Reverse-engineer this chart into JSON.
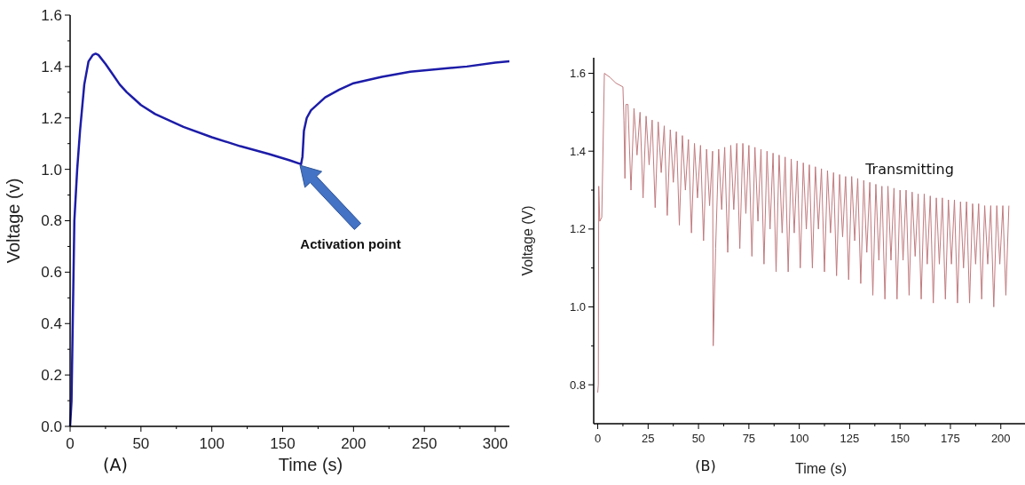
{
  "chart_data": [
    {
      "type": "line",
      "xlabel": "Time (s)",
      "ylabel": "Voltage (v)",
      "xlim": [
        0,
        310
      ],
      "ylim": [
        0,
        1.6
      ],
      "xticks": [
        0,
        {
          "value": 25,
          "label": null
        },
        50,
        {
          "value": 75,
          "label": null
        },
        100,
        {
          "value": 125,
          "label": null
        },
        150,
        {
          "value": 175,
          "label": null
        },
        200,
        {
          "value": 225,
          "label": null
        },
        250,
        {
          "value": 275,
          "label": null
        },
        300
      ],
      "yticks": [
        {
          "value": 0,
          "label": "0.0"
        },
        {
          "value": 0.1,
          "label": null
        },
        0.2,
        {
          "value": 0.3,
          "label": null
        },
        0.4,
        {
          "value": 0.5,
          "label": null
        },
        0.6,
        {
          "value": 0.7,
          "label": null
        },
        0.8,
        {
          "value": 0.9,
          "label": null
        },
        {
          "value": 1,
          "label": "1.0"
        },
        {
          "value": 1.1,
          "label": null
        },
        1.2,
        {
          "value": 1.3,
          "label": null
        },
        1.4,
        {
          "value": 1.5,
          "label": null
        },
        1.6
      ],
      "grid": false,
      "marker": "none",
      "line_style": "solid",
      "series": [
        {
          "color": "#1c1ca8",
          "x": [
            0,
            1,
            2,
            3,
            5,
            7,
            10,
            13,
            16,
            18,
            20,
            25,
            30,
            35,
            40,
            45,
            50,
            60,
            70,
            80,
            100,
            120,
            140,
            155,
            163,
            164,
            165,
            167,
            170,
            180,
            190,
            200,
            220,
            240,
            260,
            280,
            300,
            310
          ],
          "values": [
            0,
            0.1,
            0.45,
            0.8,
            1.0,
            1.15,
            1.33,
            1.42,
            1.445,
            1.45,
            1.445,
            1.41,
            1.37,
            1.33,
            1.3,
            1.275,
            1.25,
            1.215,
            1.19,
            1.165,
            1.125,
            1.09,
            1.06,
            1.035,
            1.02,
            1.05,
            1.15,
            1.2,
            1.23,
            1.28,
            1.31,
            1.335,
            1.36,
            1.38,
            1.39,
            1.4,
            1.415,
            1.42
          ]
        }
      ],
      "annotations": [
        "(A)",
        "Activation point"
      ]
    },
    {
      "type": "line",
      "xlabel": "Time (s)",
      "ylabel": "Voltage (V)",
      "xlim": [
        -2,
        212
      ],
      "ylim": [
        0.7,
        1.64
      ],
      "xticks": [
        0,
        {
          "value": 12.5,
          "label": null
        },
        25,
        {
          "value": 37.5,
          "label": null
        },
        50,
        {
          "value": 62.5,
          "label": null
        },
        75,
        {
          "value": 87.5,
          "label": null
        },
        100,
        {
          "value": 112.5,
          "label": null
        },
        125,
        {
          "value": 137.5,
          "label": null
        },
        150,
        {
          "value": 162.5,
          "label": null
        },
        175,
        {
          "value": 187.5,
          "label": null
        },
        200
      ],
      "yticks": [
        0.8,
        {
          "value": 0.9,
          "label": null
        },
        {
          "value": 1,
          "label": "1.0"
        },
        {
          "value": 1.1,
          "label": null
        },
        1.2,
        {
          "value": 1.3,
          "label": null
        },
        1.4,
        {
          "value": 1.5,
          "label": null
        },
        1.6
      ],
      "grid": false,
      "marker": "none",
      "line_style": "solid",
      "series": [
        {
          "color": "#c07a7e",
          "x": [
            0,
            0.3,
            0.5,
            1,
            2,
            3.3,
            6,
            9,
            12.5,
            13,
            13.5,
            14,
            15,
            16.5,
            18,
            19.5,
            21,
            22.5,
            24,
            25.5,
            27,
            28.5,
            30,
            31.5,
            33,
            34.5,
            36,
            37.5,
            39,
            40.5,
            42,
            43.5,
            45,
            46.5,
            48,
            49.5,
            51,
            52.5,
            54,
            55.5,
            57,
            57.3,
            58.5,
            60,
            61.5,
            63,
            64.5,
            66,
            67.5,
            69,
            70.5,
            72,
            73.5,
            75,
            76.5,
            78,
            79.5,
            81,
            82.5,
            84,
            85.5,
            87,
            88.5,
            90,
            91.5,
            93,
            94.5,
            96,
            97.5,
            99,
            100.5,
            102,
            103.5,
            105,
            106.5,
            108,
            109.5,
            111,
            112.5,
            114,
            115.5,
            117,
            118.5,
            120,
            121.5,
            123,
            124.5,
            126,
            127.5,
            129,
            130.5,
            132,
            133.5,
            135,
            136.5,
            138,
            139.5,
            141,
            142.5,
            144,
            145.5,
            147,
            148.5,
            150,
            151.5,
            153,
            154.5,
            156,
            157.5,
            159,
            160.5,
            162,
            163.5,
            165,
            166.5,
            168,
            169.5,
            171,
            172.5,
            174,
            175.5,
            177,
            178.5,
            180,
            181.5,
            183,
            184.5,
            186,
            187.5,
            189,
            190.5,
            192,
            193.5,
            195,
            196.5,
            198,
            199.5,
            201,
            202.5,
            204
          ],
          "values": [
            0.78,
            0.8,
            1.31,
            1.22,
            1.23,
            1.6,
            1.59,
            1.575,
            1.565,
            1.48,
            1.33,
            1.52,
            1.52,
            1.3,
            1.51,
            1.39,
            1.5,
            1.28,
            1.49,
            1.365,
            1.48,
            1.255,
            1.475,
            1.345,
            1.465,
            1.235,
            1.455,
            1.32,
            1.45,
            1.21,
            1.44,
            1.3,
            1.43,
            1.19,
            1.42,
            1.28,
            1.415,
            1.17,
            1.405,
            1.26,
            1.4,
            0.9,
            1.15,
            1.405,
            1.25,
            1.41,
            1.14,
            1.415,
            1.25,
            1.42,
            1.15,
            1.42,
            1.24,
            1.415,
            1.13,
            1.41,
            1.22,
            1.405,
            1.11,
            1.4,
            1.2,
            1.395,
            1.09,
            1.39,
            1.19,
            1.385,
            1.09,
            1.38,
            1.19,
            1.375,
            1.1,
            1.37,
            1.2,
            1.365,
            1.1,
            1.36,
            1.2,
            1.355,
            1.09,
            1.35,
            1.19,
            1.345,
            1.08,
            1.34,
            1.18,
            1.335,
            1.07,
            1.335,
            1.17,
            1.33,
            1.06,
            1.325,
            1.14,
            1.32,
            1.03,
            1.315,
            1.12,
            1.31,
            1.02,
            1.31,
            1.12,
            1.305,
            1.02,
            1.3,
            1.12,
            1.3,
            1.03,
            1.295,
            1.13,
            1.29,
            1.02,
            1.29,
            1.11,
            1.285,
            1.01,
            1.28,
            1.11,
            1.28,
            1.02,
            1.275,
            1.11,
            1.275,
            1.01,
            1.27,
            1.1,
            1.27,
            1.01,
            1.265,
            1.11,
            1.265,
            1.02,
            1.26,
            1.11,
            1.26,
            1.0,
            1.26,
            1.11,
            1.26,
            1.03,
            1.26
          ]
        }
      ],
      "annotations": [
        "(B)",
        "Transmitting"
      ]
    }
  ]
}
